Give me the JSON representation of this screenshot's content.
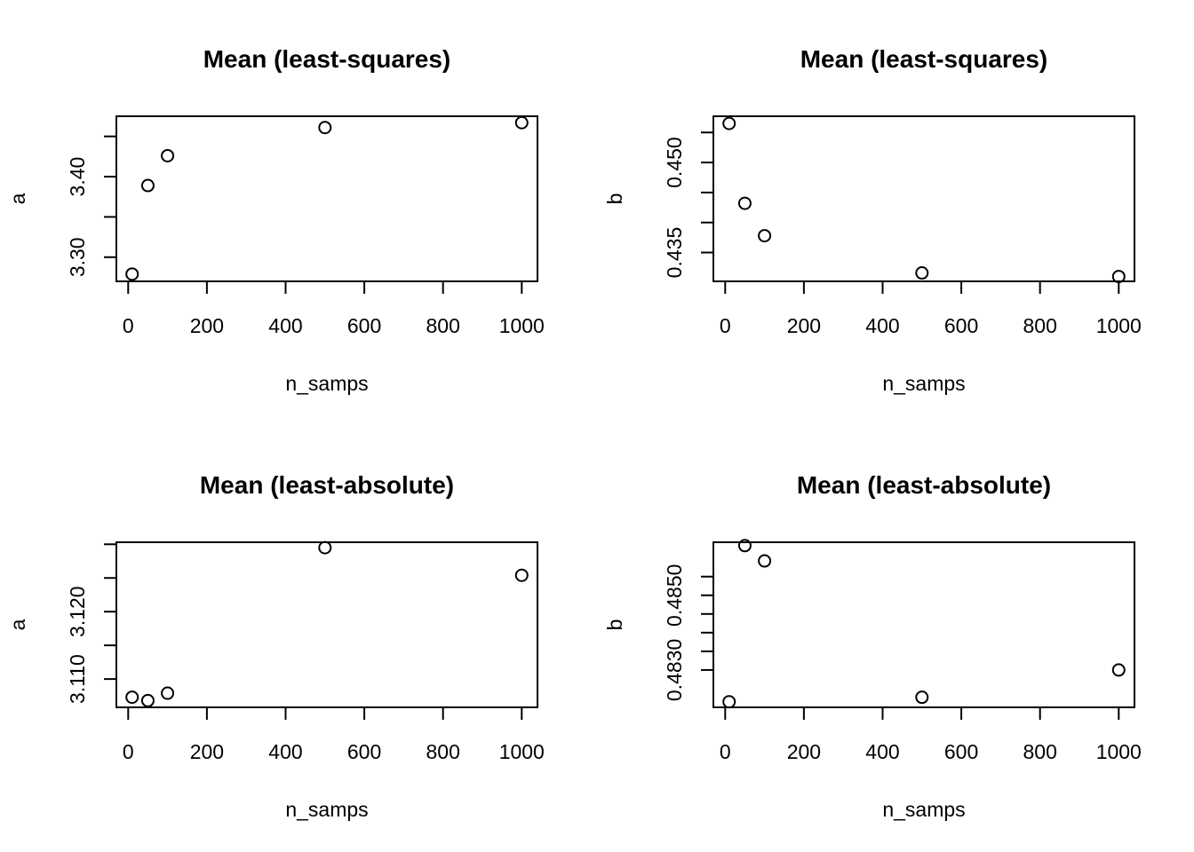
{
  "chart_data": [
    {
      "type": "scatter",
      "title": "Mean (least-squares)",
      "xlabel": "n_samps",
      "ylabel": "a",
      "x": [
        10,
        50,
        100,
        500,
        1000
      ],
      "y": [
        3.279,
        3.389,
        3.426,
        3.461,
        3.467
      ],
      "xlim": [
        -30,
        1040
      ],
      "ylim": [
        3.27,
        3.475
      ],
      "xticks": [
        0,
        200,
        400,
        600,
        800,
        1000
      ],
      "xtick_labels": [
        "0",
        "200",
        "400",
        "600",
        "800",
        "1000"
      ],
      "yticks": [
        3.3,
        3.35,
        3.4,
        3.45
      ],
      "ytick_labels": [
        "3.30",
        "",
        "3.40",
        ""
      ],
      "grid": false,
      "marker": "open-circle"
    },
    {
      "type": "scatter",
      "title": "Mean (least-squares)",
      "xlabel": "n_samps",
      "ylabel": "b",
      "x": [
        10,
        50,
        100,
        500,
        1000
      ],
      "y": [
        0.4565,
        0.4432,
        0.4378,
        0.4316,
        0.431
      ],
      "xlim": [
        -30,
        1040
      ],
      "ylim": [
        0.4302,
        0.4577
      ],
      "xticks": [
        0,
        200,
        400,
        600,
        800,
        1000
      ],
      "xtick_labels": [
        "0",
        "200",
        "400",
        "600",
        "800",
        "1000"
      ],
      "yticks": [
        0.435,
        0.44,
        0.445,
        0.45,
        0.455
      ],
      "ytick_labels": [
        "0.435",
        "",
        "",
        "0.450",
        ""
      ],
      "grid": false,
      "marker": "open-circle"
    },
    {
      "type": "scatter",
      "title": "Mean (least-absolute)",
      "xlabel": "n_samps",
      "ylabel": "a",
      "x": [
        10,
        50,
        100,
        500,
        1000
      ],
      "y": [
        3.1073,
        3.1068,
        3.1079,
        3.1295,
        3.1254
      ],
      "xlim": [
        -30,
        1040
      ],
      "ylim": [
        3.1058,
        3.1303
      ],
      "xticks": [
        0,
        200,
        400,
        600,
        800,
        1000
      ],
      "xtick_labels": [
        "0",
        "200",
        "400",
        "600",
        "800",
        "1000"
      ],
      "yticks": [
        3.11,
        3.115,
        3.12,
        3.125,
        3.13
      ],
      "ytick_labels": [
        "3.110",
        "",
        "3.120",
        "",
        ""
      ],
      "grid": false,
      "marker": "open-circle"
    },
    {
      "type": "scatter",
      "title": "Mean (least-absolute)",
      "xlabel": "n_samps",
      "ylabel": "b",
      "x": [
        10,
        50,
        100,
        500,
        1000
      ],
      "y": [
        0.48215,
        0.48633,
        0.48592,
        0.48227,
        0.483
      ],
      "xlim": [
        -30,
        1040
      ],
      "ylim": [
        0.482,
        0.48642
      ],
      "xticks": [
        0,
        200,
        400,
        600,
        800,
        1000
      ],
      "xtick_labels": [
        "0",
        "200",
        "400",
        "600",
        "800",
        "1000"
      ],
      "yticks": [
        0.483,
        0.4835,
        0.484,
        0.4845,
        0.485,
        0.4855
      ],
      "ytick_labels": [
        "0.4830",
        "",
        "",
        "",
        "0.4850",
        ""
      ],
      "grid": false,
      "marker": "open-circle"
    }
  ]
}
